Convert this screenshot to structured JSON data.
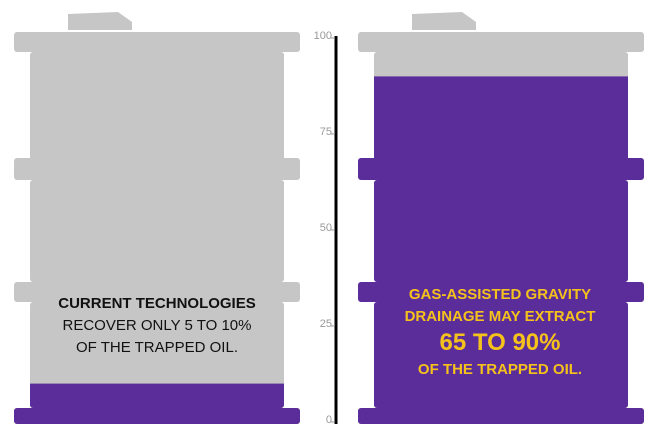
{
  "chart_data": {
    "type": "barrel",
    "values": [
      10,
      90
    ],
    "ylim": [
      0,
      100
    ],
    "yticks": [
      0,
      25,
      50,
      75,
      100
    ],
    "empty_color": "#c6c6c6",
    "fill_color": "#5b2d9b",
    "annotations": [
      {
        "color": "#111111",
        "lines": [
          "CURRENT TECHNOLOGIES",
          "RECOVER ONLY 5 TO 10%",
          "OF THE TRAPPED OIL."
        ],
        "bold": [
          true,
          false,
          false
        ],
        "sizes": [
          15,
          15,
          15
        ]
      },
      {
        "color": "#f5c21b",
        "lines": [
          "GAS-ASSISTED GRAVITY",
          "DRAINAGE MAY EXTRACT",
          "65 TO 90%",
          "OF THE TRAPPED OIL."
        ],
        "bold": [
          true,
          true,
          true,
          true
        ],
        "sizes": [
          15,
          15,
          24,
          15
        ]
      }
    ]
  }
}
